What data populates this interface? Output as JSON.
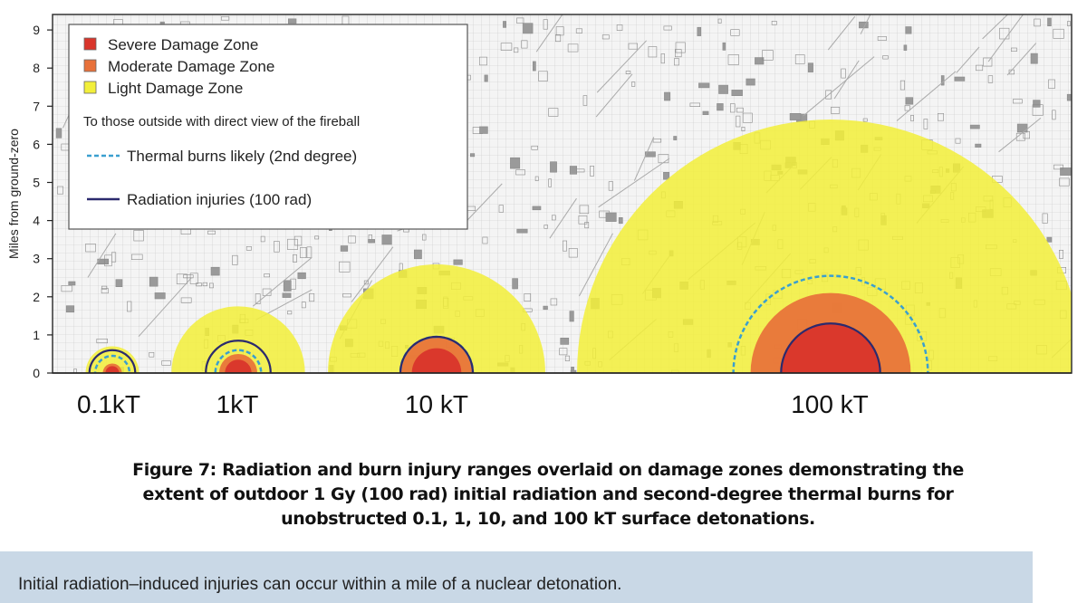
{
  "chart_data": {
    "type": "area",
    "ylabel": "Miles from ground-zero",
    "ylim": [
      0,
      9.4
    ],
    "yticks": [
      "0",
      "1",
      "2",
      "3",
      "4",
      "5",
      "6",
      "7",
      "8",
      "9"
    ],
    "grid": true,
    "legend": {
      "placement": "top-left",
      "zones": [
        {
          "label": "Severe Damage Zone",
          "color": "#d9352b"
        },
        {
          "label": "Moderate Damage Zone",
          "color": "#e8713a"
        },
        {
          "label": "Light Damage Zone",
          "color": "#f2ef3a"
        }
      ],
      "subheading": "To those outside with direct view of the fireball",
      "lines": [
        {
          "label": "Thermal burns likely (2nd degree)",
          "style": "dashed",
          "color": "#3a9fcf"
        },
        {
          "label": "Radiation injuries (100 rad)",
          "style": "solid",
          "color": "#2b2a6e"
        }
      ]
    },
    "series": [
      {
        "name": "0.1kT",
        "light_radius": 0.7,
        "moderate_radius": 0.25,
        "severe_radius": 0.18,
        "thermal_radius": 0.45,
        "radiation_radius": 0.6
      },
      {
        "name": "1kT",
        "light_radius": 1.75,
        "moderate_radius": 0.5,
        "severe_radius": 0.35,
        "thermal_radius": 0.6,
        "radiation_radius": 0.85
      },
      {
        "name": "10 kT",
        "light_radius": 2.85,
        "moderate_radius": 0.95,
        "severe_radius": 0.65,
        "thermal_radius": 0.95,
        "radiation_radius": 0.95
      },
      {
        "name": "100 kT",
        "light_radius": 6.65,
        "moderate_radius": 2.1,
        "severe_radius": 1.3,
        "thermal_radius": 2.55,
        "radiation_radius": 1.3
      }
    ]
  },
  "caption": {
    "line1": "Figure 7:  Radiation and burn injury ranges overlaid on damage zones demonstrating the",
    "line2": "extent of outdoor 1 Gy (100 rad) initial radiation and second-degree thermal burns for",
    "line3": "unobstructed 0.1, 1, 10, and 100 kT surface detonations."
  },
  "note": "Initial radiation–induced injuries can occur within a mile of a nuclear detonation."
}
